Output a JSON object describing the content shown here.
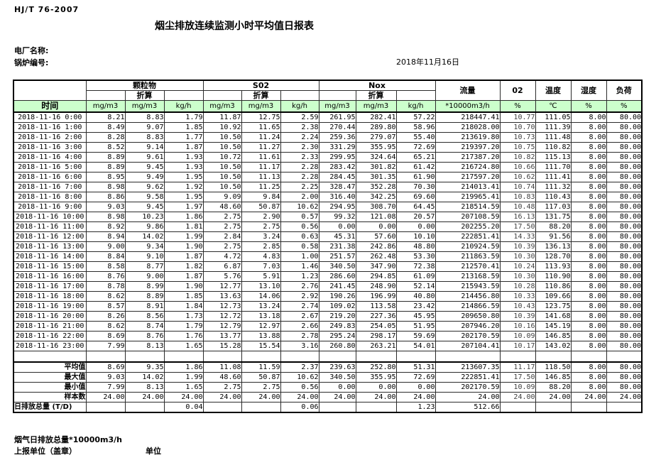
{
  "page": {
    "standard_no": "HJ/T  76-2007",
    "title": "烟尘排放连续监测小时平均值日报表",
    "plant_label": "电厂名称:",
    "boiler_label": "锅炉编号:",
    "date": "2018年11月16日"
  },
  "table": {
    "time_header": "时间",
    "group_pm": "颗粒物",
    "group_so2": "S02",
    "group_nox": "Nox",
    "conv_label": "折算",
    "col_flow": "流量",
    "col_o2": "02",
    "col_temp": "温度",
    "col_hum": "湿度",
    "col_load": "负荷",
    "units": [
      "mg/m3",
      "mg/m3",
      "kg/h",
      "mg/m3",
      "mg/m3",
      "kg/h",
      "mg/m3",
      "mg/m3",
      "kg/h",
      "*10000m3/h",
      "%",
      "℃",
      "%",
      "%"
    ],
    "rows": [
      {
        "time": "2018-11-16  0:00",
        "values": [
          "8.21",
          "8.83",
          "1.79",
          "11.87",
          "12.75",
          "2.59",
          "261.95",
          "282.41",
          "57.22",
          "218447.41",
          "10.77",
          "111.05",
          "8.00",
          "80.00"
        ]
      },
      {
        "time": "2018-11-16  1:00",
        "values": [
          "8.49",
          "9.07",
          "1.85",
          "10.92",
          "11.65",
          "2.38",
          "270.44",
          "289.80",
          "58.96",
          "218028.00",
          "10.70",
          "111.39",
          "8.00",
          "80.00"
        ]
      },
      {
        "time": "2018-11-16  2:00",
        "values": [
          "8.28",
          "8.83",
          "1.77",
          "10.50",
          "11.24",
          "2.24",
          "259.36",
          "279.07",
          "55.40",
          "213619.80",
          "10.73",
          "111.48",
          "8.00",
          "80.00"
        ]
      },
      {
        "time": "2018-11-16  3:00",
        "values": [
          "8.52",
          "9.14",
          "1.87",
          "10.50",
          "11.27",
          "2.30",
          "331.29",
          "355.95",
          "72.69",
          "219397.20",
          "10.75",
          "110.82",
          "8.00",
          "80.00"
        ]
      },
      {
        "time": "2018-11-16  4:00",
        "values": [
          "8.89",
          "9.61",
          "1.93",
          "10.72",
          "11.61",
          "2.33",
          "299.95",
          "324.64",
          "65.21",
          "217387.20",
          "10.82",
          "115.13",
          "8.00",
          "80.00"
        ]
      },
      {
        "time": "2018-11-16  5:00",
        "values": [
          "8.89",
          "9.45",
          "1.93",
          "10.50",
          "11.17",
          "2.28",
          "283.42",
          "301.82",
          "61.42",
          "216724.80",
          "10.66",
          "111.70",
          "8.00",
          "80.00"
        ]
      },
      {
        "time": "2018-11-16  6:00",
        "values": [
          "8.95",
          "9.49",
          "1.95",
          "10.50",
          "11.13",
          "2.28",
          "284.45",
          "301.35",
          "61.90",
          "217597.20",
          "10.62",
          "111.41",
          "8.00",
          "80.00"
        ]
      },
      {
        "time": "2018-11-16  7:00",
        "values": [
          "8.98",
          "9.62",
          "1.92",
          "10.50",
          "11.25",
          "2.25",
          "328.47",
          "352.28",
          "70.30",
          "214013.41",
          "10.74",
          "111.32",
          "8.00",
          "80.00"
        ]
      },
      {
        "time": "2018-11-16  8:00",
        "values": [
          "8.86",
          "9.58",
          "1.95",
          "9.09",
          "9.84",
          "2.00",
          "316.40",
          "342.25",
          "69.60",
          "219965.41",
          "10.83",
          "110.43",
          "8.00",
          "80.00"
        ]
      },
      {
        "time": "2018-11-16  9:00",
        "values": [
          "9.03",
          "9.45",
          "1.97",
          "48.60",
          "50.87",
          "10.62",
          "294.95",
          "308.70",
          "64.45",
          "218514.59",
          "10.48",
          "117.03",
          "8.00",
          "80.00"
        ]
      },
      {
        "time": "2018-11-16 10:00",
        "values": [
          "8.98",
          "10.23",
          "1.86",
          "2.75",
          "2.90",
          "0.57",
          "99.32",
          "121.08",
          "20.57",
          "207108.59",
          "16.13",
          "131.75",
          "8.00",
          "80.00"
        ]
      },
      {
        "time": "2018-11-16 11:00",
        "values": [
          "8.92",
          "9.86",
          "1.81",
          "2.75",
          "2.75",
          "0.56",
          "0.00",
          "0.00",
          "0.00",
          "202255.20",
          "17.50",
          "88.20",
          "8.00",
          "80.00"
        ]
      },
      {
        "time": "2018-11-16 12:00",
        "values": [
          "8.94",
          "14.02",
          "1.99",
          "2.84",
          "3.24",
          "0.63",
          "45.31",
          "57.60",
          "10.10",
          "222851.41",
          "14.33",
          "91.56",
          "8.00",
          "80.00"
        ]
      },
      {
        "time": "2018-11-16 13:00",
        "values": [
          "9.00",
          "9.34",
          "1.90",
          "2.75",
          "2.85",
          "0.58",
          "231.38",
          "242.86",
          "48.80",
          "210924.59",
          "10.39",
          "136.13",
          "8.00",
          "80.00"
        ]
      },
      {
        "time": "2018-11-16 14:00",
        "values": [
          "8.84",
          "9.10",
          "1.87",
          "4.72",
          "4.83",
          "1.00",
          "251.57",
          "262.48",
          "53.30",
          "211863.59",
          "10.30",
          "128.70",
          "8.00",
          "80.00"
        ]
      },
      {
        "time": "2018-11-16 15:00",
        "values": [
          "8.58",
          "8.77",
          "1.82",
          "6.87",
          "7.03",
          "1.46",
          "340.50",
          "347.90",
          "72.38",
          "212570.41",
          "10.24",
          "113.93",
          "8.00",
          "80.00"
        ]
      },
      {
        "time": "2018-11-16 16:00",
        "values": [
          "8.76",
          "9.00",
          "1.87",
          "5.76",
          "5.91",
          "1.23",
          "286.60",
          "294.85",
          "61.09",
          "213168.59",
          "10.30",
          "110.90",
          "8.00",
          "80.00"
        ]
      },
      {
        "time": "2018-11-16 17:00",
        "values": [
          "8.78",
          "8.99",
          "1.90",
          "12.77",
          "13.10",
          "2.76",
          "241.45",
          "248.90",
          "52.14",
          "215943.59",
          "10.28",
          "110.86",
          "8.00",
          "80.00"
        ]
      },
      {
        "time": "2018-11-16 18:00",
        "values": [
          "8.62",
          "8.89",
          "1.85",
          "13.63",
          "14.06",
          "2.92",
          "190.26",
          "196.99",
          "40.80",
          "214456.80",
          "10.33",
          "109.66",
          "8.00",
          "80.00"
        ]
      },
      {
        "time": "2018-11-16 19:00",
        "values": [
          "8.57",
          "8.91",
          "1.84",
          "12.73",
          "13.24",
          "2.74",
          "109.02",
          "113.58",
          "23.42",
          "214866.59",
          "10.43",
          "123.75",
          "8.00",
          "80.00"
        ]
      },
      {
        "time": "2018-11-16 20:00",
        "values": [
          "8.26",
          "8.56",
          "1.73",
          "12.72",
          "13.18",
          "2.67",
          "219.20",
          "227.36",
          "45.95",
          "209650.80",
          "10.39",
          "141.68",
          "8.00",
          "80.00"
        ]
      },
      {
        "time": "2018-11-16 21:00",
        "values": [
          "8.62",
          "8.74",
          "1.79",
          "12.79",
          "12.97",
          "2.66",
          "249.83",
          "254.05",
          "51.95",
          "207946.20",
          "10.16",
          "145.19",
          "8.00",
          "80.00"
        ]
      },
      {
        "time": "2018-11-16 22:00",
        "values": [
          "8.69",
          "8.76",
          "1.76",
          "13.77",
          "13.88",
          "2.78",
          "295.24",
          "298.17",
          "59.69",
          "202170.59",
          "10.09",
          "146.85",
          "8.00",
          "80.00"
        ]
      },
      {
        "time": "2018-11-16 23:00",
        "values": [
          "7.99",
          "8.13",
          "1.65",
          "15.28",
          "15.54",
          "3.16",
          "260.80",
          "263.21",
          "54.01",
          "207104.41",
          "10.17",
          "143.02",
          "8.00",
          "80.00"
        ]
      }
    ],
    "summary": [
      {
        "label": "平均值",
        "values": [
          "8.69",
          "9.35",
          "1.86",
          "11.08",
          "11.59",
          "2.37",
          "239.63",
          "252.80",
          "51.31",
          "213607.35",
          "11.17",
          "118.50",
          "8.00",
          "80.00"
        ]
      },
      {
        "label": "最大值",
        "values": [
          "9.03",
          "14.02",
          "1.99",
          "48.60",
          "50.87",
          "10.62",
          "340.50",
          "355.95",
          "72.69",
          "222851.41",
          "17.50",
          "146.85",
          "8.00",
          "80.00"
        ]
      },
      {
        "label": "最小值",
        "values": [
          "7.99",
          "8.13",
          "1.65",
          "2.75",
          "2.75",
          "0.56",
          "0.00",
          "0.00",
          "0.00",
          "202170.59",
          "10.09",
          "88.20",
          "8.00",
          "80.00"
        ]
      },
      {
        "label": "样本数",
        "values": [
          "24.00",
          "24.00",
          "24.00",
          "24.00",
          "24.00",
          "24.00",
          "24.00",
          "24.00",
          "24.00",
          "24.00",
          "24.00",
          "24.00",
          "24.00",
          "24.00"
        ]
      },
      {
        "label": "日排放总量 (T/D)",
        "values": [
          "",
          "",
          "0.04",
          "",
          "",
          "0.06",
          "",
          "",
          "1.23",
          "512.66",
          "",
          "",
          "",
          ""
        ]
      }
    ]
  },
  "footer": {
    "flue_total_label": "烟气日排放总量*10000m3/h",
    "report_unit_label": "上报单位（盖章）",
    "unit_label": "单位"
  },
  "colors": {
    "header_green": "#ccffcc",
    "grid": "#2b2b2b"
  }
}
